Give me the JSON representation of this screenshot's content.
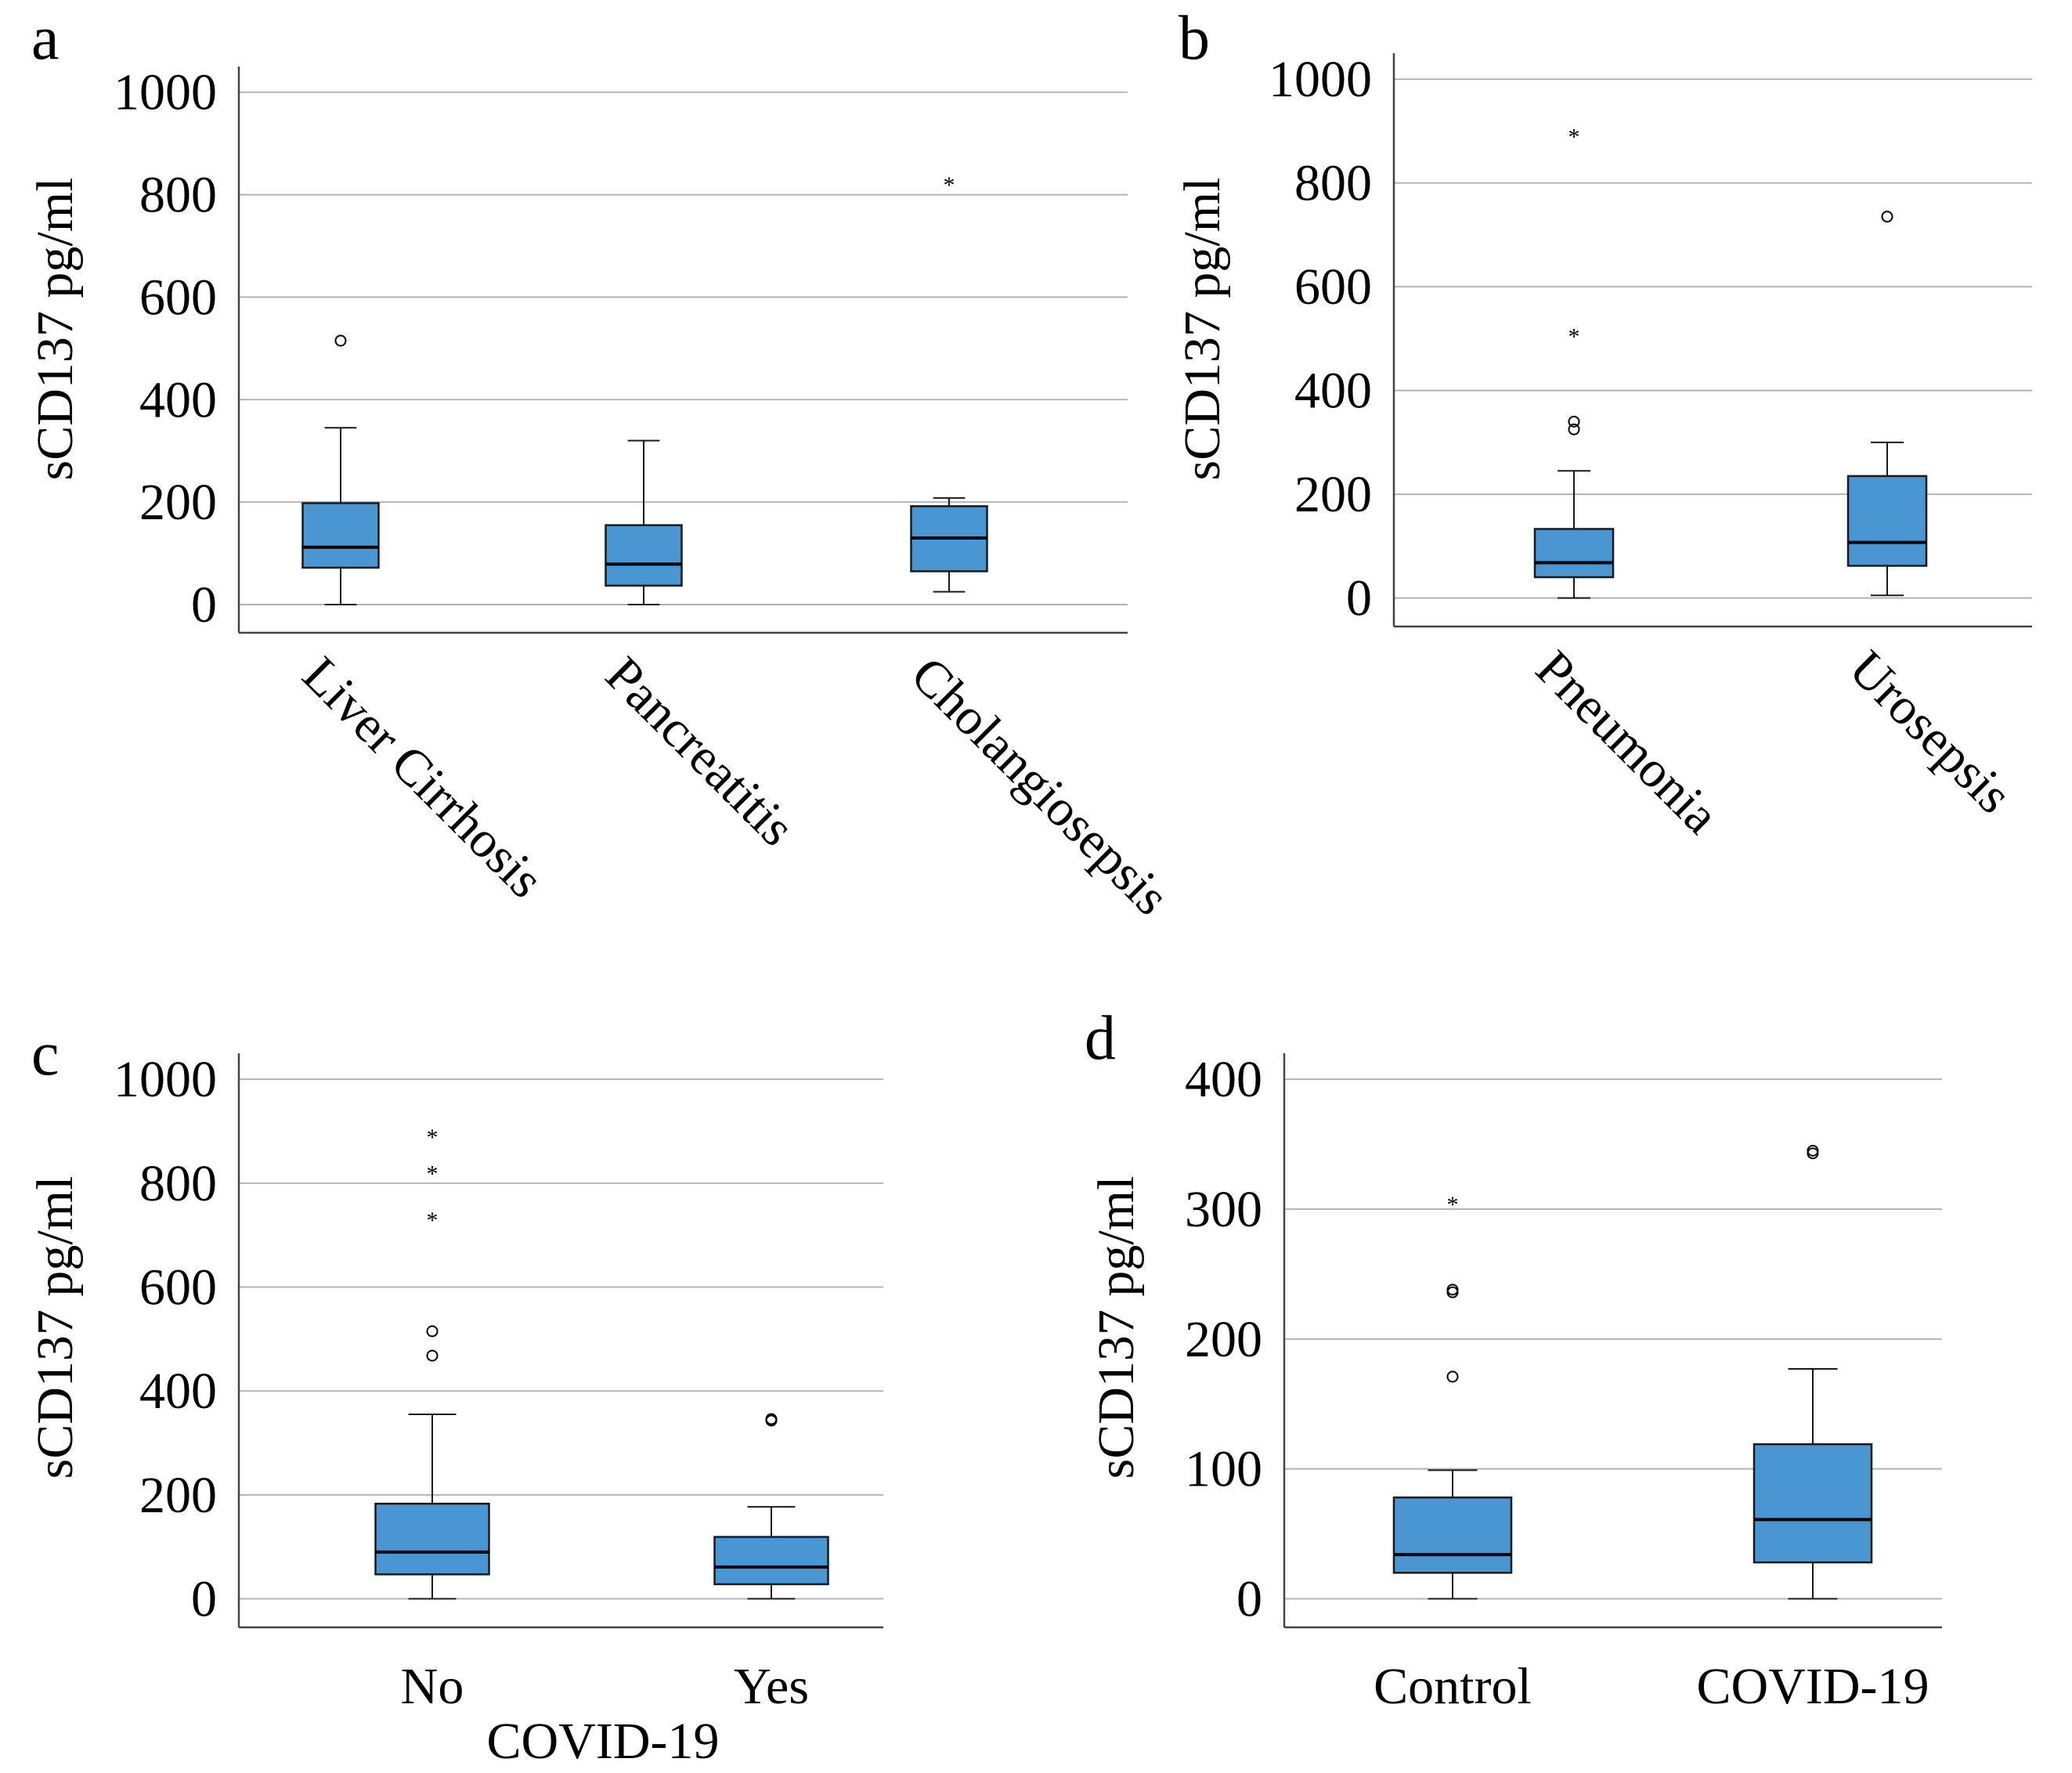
{
  "chart_data": [
    {
      "type": "boxplot",
      "panel": "a",
      "ylabel": "sCD137 pg/ml",
      "xlabel": "",
      "ylim": [
        -55,
        1050
      ],
      "yticks": [
        0,
        200,
        400,
        600,
        800,
        1000
      ],
      "categories": [
        "Liver Cirrhosis",
        "Pancreatitis",
        "Cholangiosepsis"
      ],
      "boxes": [
        {
          "min": 0,
          "q1": 72,
          "median": 112,
          "q3": 198,
          "max": 345,
          "outliers": [
            {
              "value": 515,
              "marker": "circle"
            }
          ]
        },
        {
          "min": 0,
          "q1": 37,
          "median": 79,
          "q3": 155,
          "max": 320,
          "outliers": []
        },
        {
          "min": 25,
          "q1": 65,
          "median": 130,
          "q3": 192,
          "max": 208,
          "outliers": [
            {
              "value": 825,
              "marker": "star"
            }
          ]
        }
      ]
    },
    {
      "type": "boxplot",
      "panel": "b",
      "ylabel": "sCD137 pg/ml",
      "xlabel": "",
      "ylim": [
        -55,
        1050
      ],
      "yticks": [
        0,
        200,
        400,
        600,
        800,
        1000
      ],
      "categories": [
        "Pneumonia",
        "Urosepsis"
      ],
      "boxes": [
        {
          "min": 0,
          "q1": 40,
          "median": 68,
          "q3": 133,
          "max": 245,
          "outliers": [
            {
              "value": 325,
              "marker": "circle"
            },
            {
              "value": 340,
              "marker": "circle"
            },
            {
              "value": 510,
              "marker": "star"
            },
            {
              "value": 895,
              "marker": "star"
            }
          ]
        },
        {
          "min": 5,
          "q1": 62,
          "median": 107,
          "q3": 235,
          "max": 300,
          "outliers": [
            {
              "value": 735,
              "marker": "circle"
            }
          ]
        }
      ]
    },
    {
      "type": "boxplot",
      "panel": "c",
      "ylabel": "sCD137 pg/ml",
      "xlabel": "COVID-19",
      "ylim": [
        -55,
        1050
      ],
      "yticks": [
        0,
        200,
        400,
        600,
        800,
        1000
      ],
      "categories": [
        "No",
        "Yes"
      ],
      "boxes": [
        {
          "min": 0,
          "q1": 47,
          "median": 90,
          "q3": 183,
          "max": 355,
          "outliers": [
            {
              "value": 468,
              "marker": "circle"
            },
            {
              "value": 515,
              "marker": "circle"
            },
            {
              "value": 735,
              "marker": "star"
            },
            {
              "value": 825,
              "marker": "star"
            },
            {
              "value": 895,
              "marker": "star"
            }
          ]
        },
        {
          "min": 0,
          "q1": 28,
          "median": 61,
          "q3": 119,
          "max": 177,
          "outliers": [
            {
              "value": 343,
              "marker": "circle"
            },
            {
              "value": 346,
              "marker": "circle"
            }
          ]
        }
      ]
    },
    {
      "type": "boxplot",
      "panel": "d",
      "ylabel": "sCD137 pg/ml",
      "xlabel": "",
      "ylim": [
        -22,
        420
      ],
      "yticks": [
        0,
        100,
        200,
        300,
        400
      ],
      "categories": [
        "Control",
        "COVID-19"
      ],
      "boxes": [
        {
          "min": 0,
          "q1": 20,
          "median": 34,
          "q3": 78,
          "max": 99,
          "outliers": [
            {
              "value": 171,
              "marker": "circle"
            },
            {
              "value": 236,
              "marker": "circle"
            },
            {
              "value": 238,
              "marker": "circle"
            },
            {
              "value": 306,
              "marker": "star"
            }
          ]
        },
        {
          "min": 0,
          "q1": 28,
          "median": 61,
          "q3": 119,
          "max": 177,
          "outliers": [
            {
              "value": 343,
              "marker": "circle"
            },
            {
              "value": 345,
              "marker": "circle"
            }
          ]
        }
      ]
    }
  ],
  "style": {
    "box_fill": "#4a96d2",
    "box_stroke": "#1a1a1a",
    "grid_color": "#b4b4b4",
    "axis_color": "#444444"
  }
}
